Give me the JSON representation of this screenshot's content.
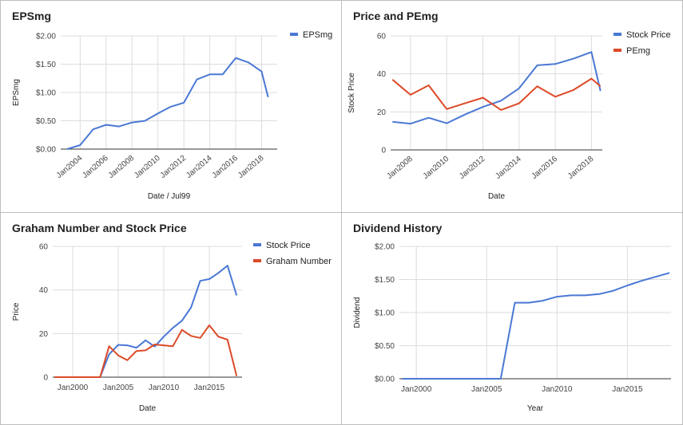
{
  "colors": {
    "blue": "#4a78d4",
    "red": "#dc4a28",
    "grid": "#dcdcdc",
    "axis": "#333333"
  },
  "chart_data": [
    {
      "id": "eps",
      "type": "line",
      "title": "EPSmg",
      "xlabel": "Date / Jul99",
      "ylabel": "EPSmg",
      "y_ticks": [
        "$0.00",
        "$0.50",
        "$1.00",
        "$1.50",
        "$2.00"
      ],
      "ylim": [
        0,
        2
      ],
      "xlim": [
        2002.5,
        2019.2
      ],
      "x_ticks": [
        {
          "label": "Jan2004",
          "x": 2004
        },
        {
          "label": "Jan2006",
          "x": 2006
        },
        {
          "label": "Jan2008",
          "x": 2008
        },
        {
          "label": "Jan2010",
          "x": 2010
        },
        {
          "label": "Jan2012",
          "x": 2012
        },
        {
          "label": "Jan2014",
          "x": 2014
        },
        {
          "label": "Jan2016",
          "x": 2016
        },
        {
          "label": "Jan2018",
          "x": 2018
        }
      ],
      "legend_position": "right",
      "series": [
        {
          "name": "EPSmg",
          "color": "#4a78d4",
          "points": [
            [
              2003,
              0.0
            ],
            [
              2004,
              0.07
            ],
            [
              2005,
              0.35
            ],
            [
              2006,
              0.43
            ],
            [
              2007,
              0.4
            ],
            [
              2008,
              0.47
            ],
            [
              2009,
              0.5
            ],
            [
              2010,
              0.63
            ],
            [
              2011,
              0.75
            ],
            [
              2012,
              0.82
            ],
            [
              2013,
              1.23
            ],
            [
              2014,
              1.32
            ],
            [
              2015,
              1.32
            ],
            [
              2016,
              1.61
            ],
            [
              2017,
              1.53
            ],
            [
              2018,
              1.37
            ],
            [
              2018.5,
              0.92
            ]
          ]
        }
      ]
    },
    {
      "id": "pe",
      "type": "line",
      "title": "Price and PEmg",
      "xlabel": "Date",
      "ylabel": "Stock Price",
      "y_ticks": [
        "0",
        "20",
        "40",
        "60"
      ],
      "ylim": [
        0,
        60
      ],
      "xlim": [
        2006.9,
        2018.6
      ],
      "x_ticks": [
        {
          "label": "Jan2008",
          "x": 2008
        },
        {
          "label": "Jan2010",
          "x": 2010
        },
        {
          "label": "Jan2012",
          "x": 2012
        },
        {
          "label": "Jan2014",
          "x": 2014
        },
        {
          "label": "Jan2016",
          "x": 2016
        },
        {
          "label": "Jan2018",
          "x": 2018
        }
      ],
      "legend_position": "right",
      "series": [
        {
          "name": "Stock Price",
          "color": "#4a78d4",
          "points": [
            [
              2007,
              14.8
            ],
            [
              2008,
              13.8
            ],
            [
              2009,
              16.9
            ],
            [
              2010,
              14.0
            ],
            [
              2011,
              18.6
            ],
            [
              2012,
              22.6
            ],
            [
              2013,
              25.9
            ],
            [
              2014,
              32.4
            ],
            [
              2015,
              44.5
            ],
            [
              2016,
              45.2
            ],
            [
              2017,
              48.0
            ],
            [
              2018,
              51.5
            ],
            [
              2018.5,
              31.0
            ]
          ]
        },
        {
          "name": "PEmg",
          "color": "#dc4a28",
          "points": [
            [
              2007,
              37.0
            ],
            [
              2008,
              29.0
            ],
            [
              2009,
              34.0
            ],
            [
              2010,
              21.5
            ],
            [
              2011,
              24.5
            ],
            [
              2012,
              27.5
            ],
            [
              2013,
              21.0
            ],
            [
              2014,
              24.5
            ],
            [
              2015,
              33.5
            ],
            [
              2016,
              28.0
            ],
            [
              2017,
              31.5
            ],
            [
              2018,
              37.5
            ],
            [
              2018.5,
              33.5
            ]
          ]
        }
      ]
    },
    {
      "id": "graham",
      "type": "line",
      "title": "Graham Number and Stock Price",
      "xlabel": "Date",
      "ylabel": "Price",
      "y_ticks": [
        "0",
        "20",
        "40",
        "60"
      ],
      "ylim": [
        0,
        60
      ],
      "xlim": [
        1997.8,
        2018.6
      ],
      "x_ticks": [
        {
          "label": "Jan2000",
          "x": 2000
        },
        {
          "label": "Jan2005",
          "x": 2005
        },
        {
          "label": "Jan2010",
          "x": 2010
        },
        {
          "label": "Jan2015",
          "x": 2015
        }
      ],
      "legend_position": "right",
      "series": [
        {
          "name": "Stock Price",
          "color": "#4a78d4",
          "points": [
            [
              1998,
              0
            ],
            [
              1999,
              0
            ],
            [
              2000,
              0
            ],
            [
              2001,
              0
            ],
            [
              2002,
              0
            ],
            [
              2003,
              0
            ],
            [
              2004,
              10.5
            ],
            [
              2005,
              14.8
            ],
            [
              2006,
              14.6
            ],
            [
              2007,
              13.5
            ],
            [
              2008,
              16.9
            ],
            [
              2009,
              14.0
            ],
            [
              2010,
              18.6
            ],
            [
              2011,
              22.6
            ],
            [
              2012,
              25.9
            ],
            [
              2013,
              32.0
            ],
            [
              2014,
              44.2
            ],
            [
              2015,
              45.0
            ],
            [
              2016,
              47.8
            ],
            [
              2017,
              51.2
            ],
            [
              2018,
              37.5
            ]
          ]
        },
        {
          "name": "Graham Number",
          "color": "#dc4a28",
          "points": [
            [
              1998,
              0
            ],
            [
              1999,
              0
            ],
            [
              2000,
              0
            ],
            [
              2001,
              0
            ],
            [
              2002,
              0
            ],
            [
              2003,
              0
            ],
            [
              2004,
              14.2
            ],
            [
              2005,
              10.0
            ],
            [
              2006,
              7.8
            ],
            [
              2007,
              12.0
            ],
            [
              2008,
              12.3
            ],
            [
              2009,
              15.0
            ],
            [
              2010,
              14.6
            ],
            [
              2011,
              14.2
            ],
            [
              2012,
              21.7
            ],
            [
              2013,
              18.9
            ],
            [
              2014,
              18.0
            ],
            [
              2015,
              23.8
            ],
            [
              2016,
              18.6
            ],
            [
              2017,
              17.2
            ],
            [
              2018,
              0.5
            ]
          ]
        }
      ]
    },
    {
      "id": "dividend",
      "type": "line",
      "title": "Dividend History",
      "xlabel": "Year",
      "ylabel": "Dividend",
      "y_ticks": [
        "$0.00",
        "$0.50",
        "$1.00",
        "$1.50",
        "$2.00"
      ],
      "ylim": [
        0,
        2
      ],
      "xlim": [
        1998.8,
        2018.1
      ],
      "x_ticks": [
        {
          "label": "Jan2000",
          "x": 2000
        },
        {
          "label": "Jan2005",
          "x": 2005
        },
        {
          "label": "Jan2010",
          "x": 2010
        },
        {
          "label": "Jan2015",
          "x": 2015
        }
      ],
      "legend_position": "none",
      "series": [
        {
          "name": "",
          "color": "#4a78d4",
          "points": [
            [
              1999,
              0
            ],
            [
              2000,
              0
            ],
            [
              2001,
              0
            ],
            [
              2002,
              0
            ],
            [
              2003,
              0
            ],
            [
              2004,
              0
            ],
            [
              2005,
              0
            ],
            [
              2006,
              0
            ],
            [
              2007,
              1.15
            ],
            [
              2008,
              1.15
            ],
            [
              2009,
              1.18
            ],
            [
              2010,
              1.24
            ],
            [
              2011,
              1.26
            ],
            [
              2012,
              1.26
            ],
            [
              2013,
              1.28
            ],
            [
              2014,
              1.33
            ],
            [
              2015,
              1.41
            ],
            [
              2016,
              1.48
            ],
            [
              2017,
              1.54
            ],
            [
              2018,
              1.6
            ]
          ]
        }
      ]
    }
  ]
}
